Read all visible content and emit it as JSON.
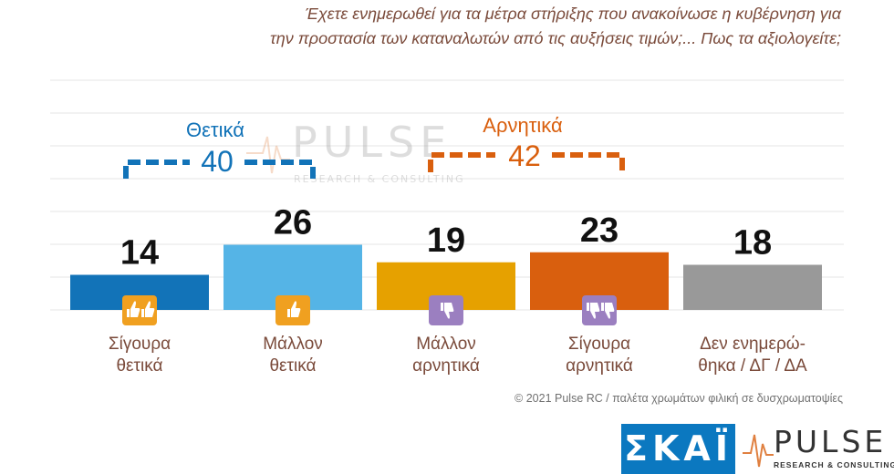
{
  "question": {
    "line1": "Έχετε ενημερωθεί για τα μέτρα στήριξης που ανακοίνωσε η κυβέρνηση για",
    "line2": "την προστασία των καταναλωτών από τις αυξήσεις τιμών;... Πως τα αξιολογείτε;"
  },
  "groups": {
    "positive": {
      "label": "Θετικά",
      "total": "40",
      "color": "#1273b8"
    },
    "negative": {
      "label": "Αρνητικά",
      "total": "42",
      "color": "#d95f0e"
    }
  },
  "chart_data": {
    "type": "bar",
    "categories": [
      [
        "Σίγουρα",
        "θετικά"
      ],
      [
        "Μάλλον",
        "θετικά"
      ],
      [
        "Μάλλον",
        "αρνητικά"
      ],
      [
        "Σίγουρα",
        "αρνητικά"
      ],
      [
        "Δεν ενημερώ-",
        "θηκα / ΔΓ / ΔΑ"
      ]
    ],
    "values": [
      14,
      26,
      19,
      23,
      18
    ],
    "colors": [
      "#1273b8",
      "#55b4e6",
      "#e6a100",
      "#d95f0e",
      "#999999"
    ],
    "icons": [
      "double-thumbs-up-icon",
      "thumbs-up-icon",
      "thumbs-down-icon",
      "double-thumbs-down-icon",
      ""
    ],
    "icon_colors": [
      "#f0a020",
      "#f0a020",
      "#9b7fc0",
      "#9b7fc0",
      ""
    ],
    "ylim": [
      0,
      40
    ],
    "grid": true
  },
  "watermark": {
    "word": "PULSE",
    "sub": "RESEARCH & CONSULTING"
  },
  "footer": "© 2021 Pulse RC   /   παλέτα χρωμάτων φιλική σε δυσχρωματοψίες",
  "logos": {
    "skai": "ΣΚΑΪ",
    "pulse_word": "PULSE",
    "pulse_sub": "RESEARCH & CONSULTING"
  }
}
